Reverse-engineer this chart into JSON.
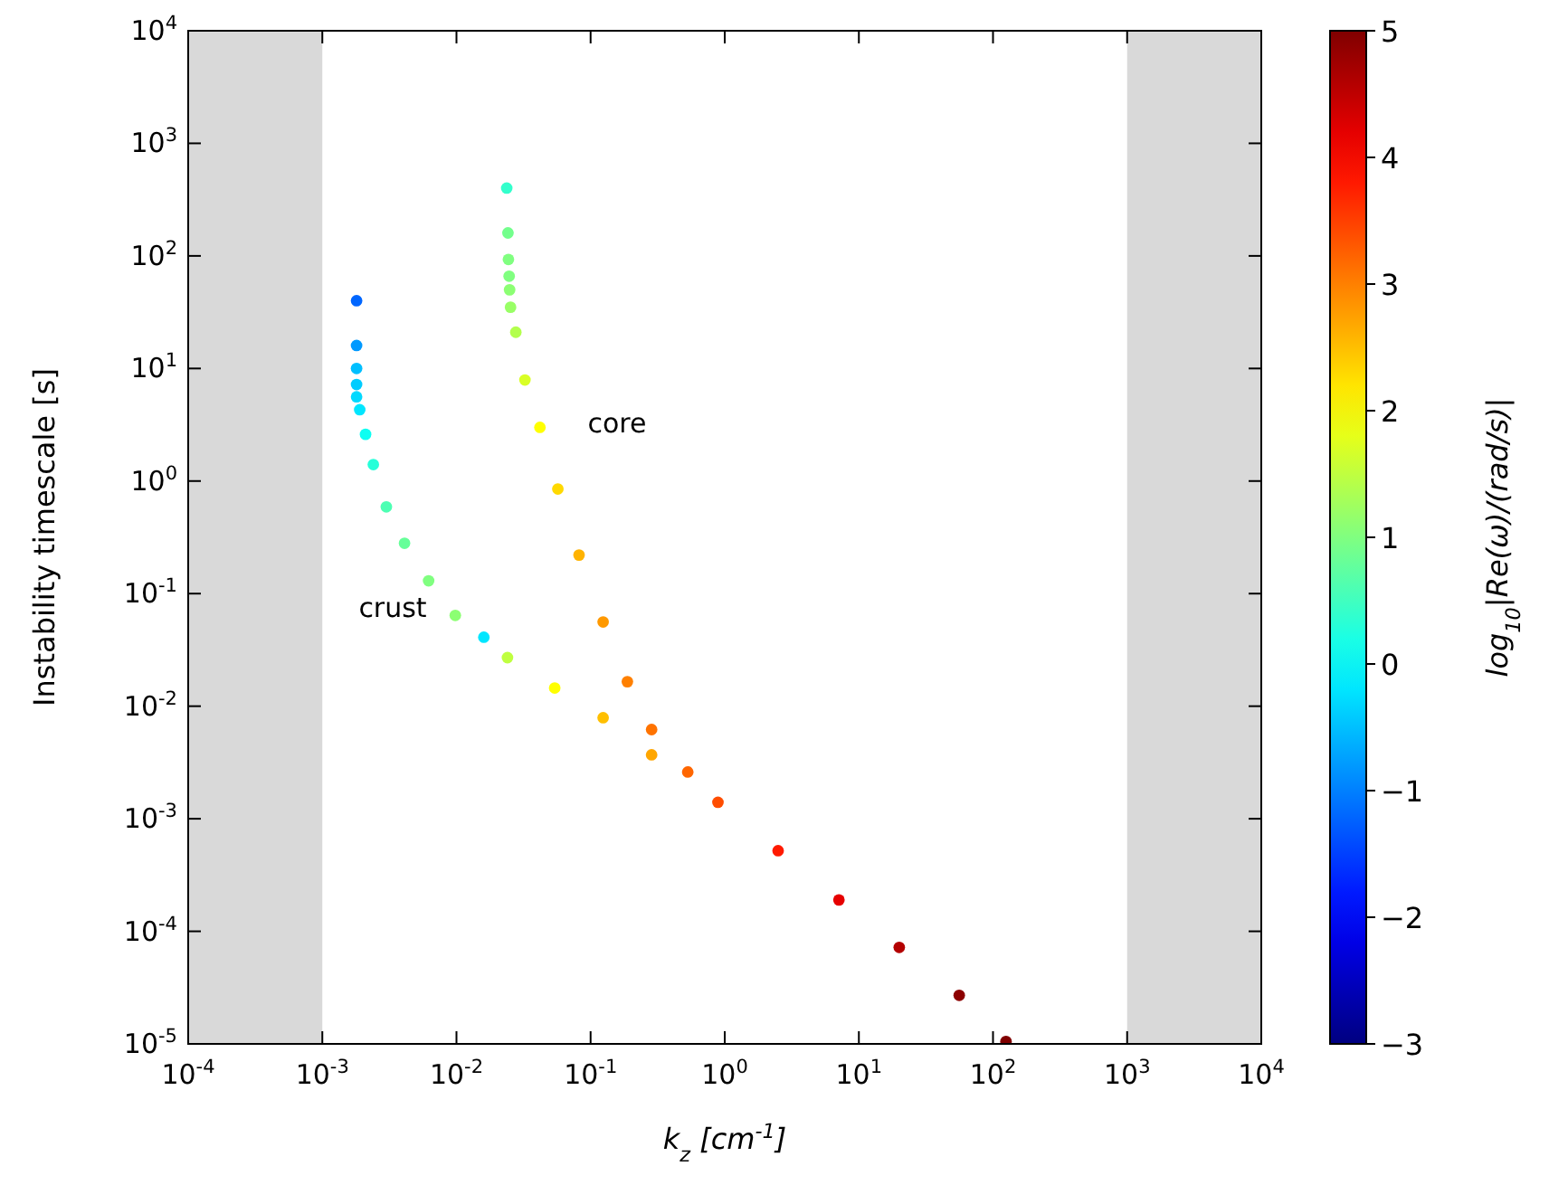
{
  "chart_data": {
    "type": "scatter",
    "xlabel": "k$_{z}$ [cm$^{-1}$]",
    "ylabel": "Instability timescale [s]",
    "clabel": "log$_{10}$|Re(ω)/(rad/s)|",
    "log": "xy",
    "grid": false,
    "marker": "circle",
    "xlim": [
      0.0001,
      10000
    ],
    "ylim": [
      1e-05,
      10000
    ],
    "xticks": [
      {
        "value": 0.0001,
        "label": "10$^{-4}$"
      },
      {
        "value": 0.001,
        "label": "10$^{-3}$"
      },
      {
        "value": 0.01,
        "label": "10$^{-2}$"
      },
      {
        "value": 0.1,
        "label": "10$^{-1}$"
      },
      {
        "value": 1,
        "label": "10$^{0}$"
      },
      {
        "value": 10,
        "label": "10$^{1}$"
      },
      {
        "value": 100,
        "label": "10$^{2}$"
      },
      {
        "value": 1000,
        "label": "10$^{3}$"
      },
      {
        "value": 10000,
        "label": "10$^{4}$"
      }
    ],
    "yticks": [
      {
        "value": 1e-05,
        "label": "10$^{-5}$"
      },
      {
        "value": 0.0001,
        "label": "10$^{-4}$"
      },
      {
        "value": 0.001,
        "label": "10$^{-3}$"
      },
      {
        "value": 0.01,
        "label": "10$^{-2}$"
      },
      {
        "value": 0.1,
        "label": "10$^{-1}$"
      },
      {
        "value": 1,
        "label": "10$^{0}$"
      },
      {
        "value": 10,
        "label": "10$^{1}$"
      },
      {
        "value": 100,
        "label": "10$^{2}$"
      },
      {
        "value": 1000,
        "label": "10$^{3}$"
      },
      {
        "value": 10000,
        "label": "10$^{4}$"
      }
    ],
    "clim": [
      -3,
      5
    ],
    "cticks": [
      {
        "value": -3,
        "label": "−3"
      },
      {
        "value": -2,
        "label": "−2"
      },
      {
        "value": -1,
        "label": "−1"
      },
      0,
      1,
      2,
      3,
      4,
      5
    ],
    "bands": [
      {
        "axis": "x",
        "from": 0.0001,
        "to": 0.001,
        "color": "#d9d9d9"
      },
      {
        "axis": "x",
        "from": 1000,
        "to": 10000,
        "color": "#d9d9d9"
      }
    ],
    "annotations": [
      "crust",
      "core"
    ],
    "series": [
      {
        "x": [
          0.0018,
          0.0018,
          0.0018,
          0.0018,
          0.0018,
          0.0019,
          0.0021,
          0.0024,
          0.003,
          0.0041,
          0.0062,
          0.0098,
          0.016,
          0.024,
          0.054,
          0.124,
          0.285
        ],
        "values": [
          40,
          16,
          10,
          7.2,
          5.6,
          4.3,
          2.6,
          1.4,
          0.59,
          0.28,
          0.13,
          0.064,
          0.041,
          0.027,
          0.0145,
          0.0079,
          0.0037
        ],
        "colors": [
          "#0066ff",
          "#0099ff",
          "#00bfff",
          "#00ccff",
          "#00d9ff",
          "#00e6ff",
          "#0dfff2",
          "#26ffd9",
          "#4dffb3",
          "#66ff99",
          "#80ff80",
          "#8cff73",
          "#00e6ff",
          "#bfff40",
          "#ffff00",
          "#ffbf00",
          "#ffa600"
        ]
      },
      {
        "x": [
          0.0237,
          0.0242,
          0.0244,
          0.0247,
          0.0249,
          0.0253,
          0.0277,
          0.0324,
          0.0419,
          0.057,
          0.082,
          0.124,
          0.188,
          0.285,
          0.53,
          0.89,
          2.5,
          7.1,
          20,
          56,
          125
        ],
        "values": [
          400,
          160,
          93,
          66,
          50,
          35,
          21,
          7.9,
          3.0,
          0.85,
          0.22,
          0.056,
          0.0165,
          0.0062,
          0.0026,
          0.0014,
          0.00052,
          0.00019,
          7.2e-05,
          2.7e-05,
          1.05e-05
        ],
        "colors": [
          "#33ffcc",
          "#73ff8c",
          "#80ff80",
          "#80ff80",
          "#8cff73",
          "#99ff66",
          "#b3ff4d",
          "#d9ff26",
          "#ffff00",
          "#ffd900",
          "#ffb300",
          "#ff9900",
          "#ff8000",
          "#ff7300",
          "#ff6600",
          "#ff4d00",
          "#ff1a00",
          "#e60000",
          "#b30000",
          "#8c0000",
          "#800000"
        ]
      }
    ]
  }
}
